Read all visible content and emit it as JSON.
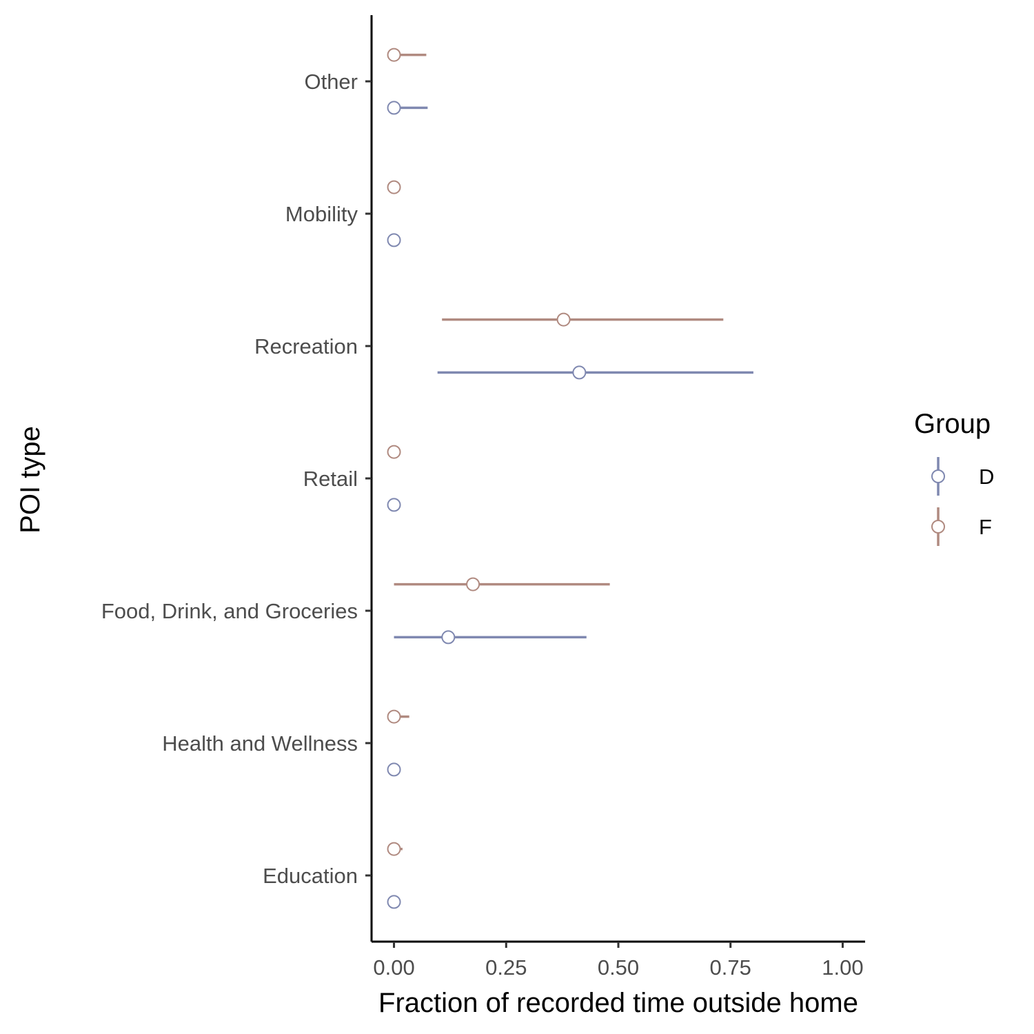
{
  "chart_data": {
    "type": "pointrange",
    "xlabel": "Fraction of recorded time outside home",
    "ylabel": "POI type",
    "xlim": [
      -0.05,
      1.05
    ],
    "x_ticks": [
      0,
      0.25,
      0.5,
      0.75,
      1.0
    ],
    "x_tick_labels": [
      "0.00",
      "0.25",
      "0.50",
      "0.75",
      "1.00"
    ],
    "categories": [
      "Other",
      "Mobility",
      "Recreation",
      "Retail",
      "Food, Drink, and Groceries",
      "Health and Wellness",
      "Education"
    ],
    "grid": false,
    "legend": {
      "title": "Group",
      "placement": "right"
    },
    "series": [
      {
        "name": "D",
        "color": "#7F88B0",
        "points": [
          {
            "category": "Other",
            "value": 0.0,
            "low": 0.0,
            "high": 0.075
          },
          {
            "category": "Mobility",
            "value": 0.0,
            "low": 0.0,
            "high": 0.0
          },
          {
            "category": "Recreation",
            "value": 0.413,
            "low": 0.097,
            "high": 0.801
          },
          {
            "category": "Retail",
            "value": 0.0,
            "low": 0.0,
            "high": 0.0
          },
          {
            "category": "Food, Drink, and Groceries",
            "value": 0.121,
            "low": 0.0,
            "high": 0.429
          },
          {
            "category": "Health and Wellness",
            "value": 0.0,
            "low": 0.0,
            "high": 0.004
          },
          {
            "category": "Education",
            "value": 0.0,
            "low": 0.0,
            "high": 0.0
          }
        ]
      },
      {
        "name": "F",
        "color": "#B08A80",
        "points": [
          {
            "category": "Other",
            "value": 0.0,
            "low": 0.0,
            "high": 0.072
          },
          {
            "category": "Mobility",
            "value": 0.0,
            "low": 0.0,
            "high": 0.0
          },
          {
            "category": "Recreation",
            "value": 0.378,
            "low": 0.107,
            "high": 0.734
          },
          {
            "category": "Retail",
            "value": 0.0,
            "low": 0.0,
            "high": 0.0
          },
          {
            "category": "Food, Drink, and Groceries",
            "value": 0.176,
            "low": 0.0,
            "high": 0.481
          },
          {
            "category": "Health and Wellness",
            "value": 0.0,
            "low": 0.0,
            "high": 0.034
          },
          {
            "category": "Education",
            "value": 0.0,
            "low": 0.0,
            "high": 0.019
          }
        ]
      }
    ]
  }
}
